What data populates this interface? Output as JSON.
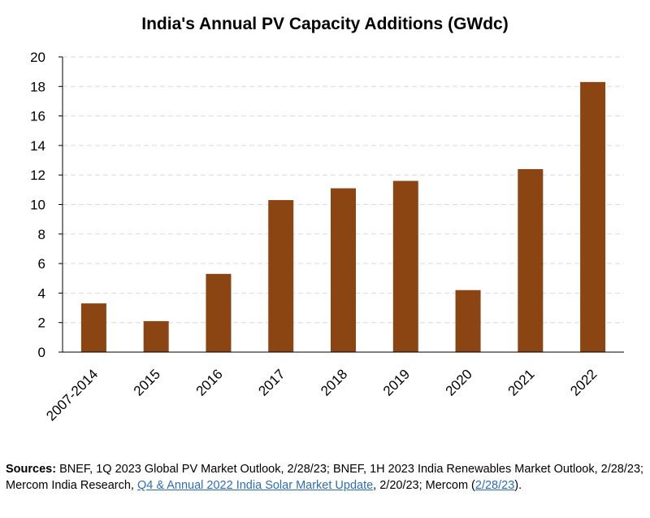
{
  "chart_data": {
    "type": "bar",
    "title": "India's Annual PV Capacity Additions (GWdc)",
    "categories": [
      "2007-2014",
      "2015",
      "2016",
      "2017",
      "2018",
      "2019",
      "2020",
      "2021",
      "2022"
    ],
    "values": [
      3.3,
      2.1,
      5.3,
      10.3,
      11.1,
      11.6,
      4.2,
      12.4,
      18.3
    ],
    "xlabel": "",
    "ylabel": "",
    "ylim": [
      0,
      20
    ],
    "yticks": [
      0,
      2,
      4,
      6,
      8,
      10,
      12,
      14,
      16,
      18,
      20
    ],
    "grid": true,
    "bar_color": "#8b4513",
    "grid_color": "#d9d9d9"
  },
  "sources": {
    "label": "Sources:",
    "text1": " BNEF, 1Q 2023 Global PV Market Outlook, 2/28/23; BNEF, 1H 2023 India Renewables Market Outlook, 2/28/23; Mercom India Research, ",
    "link1": "Q4 & Annual 2022 India Solar Market Update",
    "text2": ", 2/20/23; Mercom (",
    "link2": "2/28/23",
    "text3": ").",
    "link_color": "#2a6ebb"
  }
}
